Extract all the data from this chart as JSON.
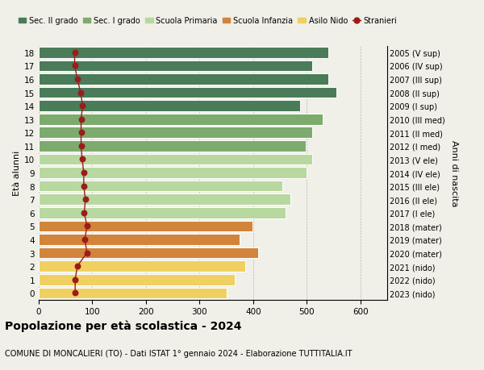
{
  "ages": [
    0,
    1,
    2,
    3,
    4,
    5,
    6,
    7,
    8,
    9,
    10,
    11,
    12,
    13,
    14,
    15,
    16,
    17,
    18
  ],
  "years": [
    "2023 (nido)",
    "2022 (nido)",
    "2021 (nido)",
    "2020 (mater)",
    "2019 (mater)",
    "2018 (mater)",
    "2017 (I ele)",
    "2016 (II ele)",
    "2015 (III ele)",
    "2014 (IV ele)",
    "2013 (V ele)",
    "2012 (I med)",
    "2011 (II med)",
    "2010 (III med)",
    "2009 (I sup)",
    "2008 (II sup)",
    "2007 (III sup)",
    "2006 (IV sup)",
    "2005 (V sup)"
  ],
  "bar_values": [
    350,
    365,
    385,
    410,
    375,
    398,
    460,
    470,
    455,
    500,
    510,
    498,
    510,
    530,
    487,
    555,
    540,
    510,
    540
  ],
  "stranieri": [
    68,
    68,
    72,
    90,
    86,
    90,
    85,
    87,
    84,
    84,
    81,
    79,
    79,
    79,
    82,
    78,
    72,
    67,
    67
  ],
  "color_map": [
    "#f0d060",
    "#f0d060",
    "#f0d060",
    "#d2843a",
    "#d2843a",
    "#d2843a",
    "#b8d8a0",
    "#b8d8a0",
    "#b8d8a0",
    "#b8d8a0",
    "#b8d8a0",
    "#7dab6e",
    "#7dab6e",
    "#7dab6e",
    "#4a7c59",
    "#4a7c59",
    "#4a7c59",
    "#4a7c59",
    "#4a7c59"
  ],
  "stranieri_color": "#9b1c1c",
  "background_color": "#f0f0e8",
  "title": "Popolazione per età scolastica - 2024",
  "subtitle": "COMUNE DI MONCALIERI (TO) - Dati ISTAT 1° gennaio 2024 - Elaborazione TUTTITALIA.IT",
  "ylabel_left": "Età alunni",
  "ylabel_right": "Anni di nascita",
  "xlim_max": 650,
  "xticks": [
    0,
    100,
    200,
    300,
    400,
    500,
    600
  ],
  "legend_labels": [
    "Sec. II grado",
    "Sec. I grado",
    "Scuola Primaria",
    "Scuola Infanzia",
    "Asilo Nido",
    "Stranieri"
  ],
  "legend_colors": [
    "#4a7c59",
    "#7dab6e",
    "#b8d8a0",
    "#d2843a",
    "#f0d060",
    "#9b1c1c"
  ]
}
